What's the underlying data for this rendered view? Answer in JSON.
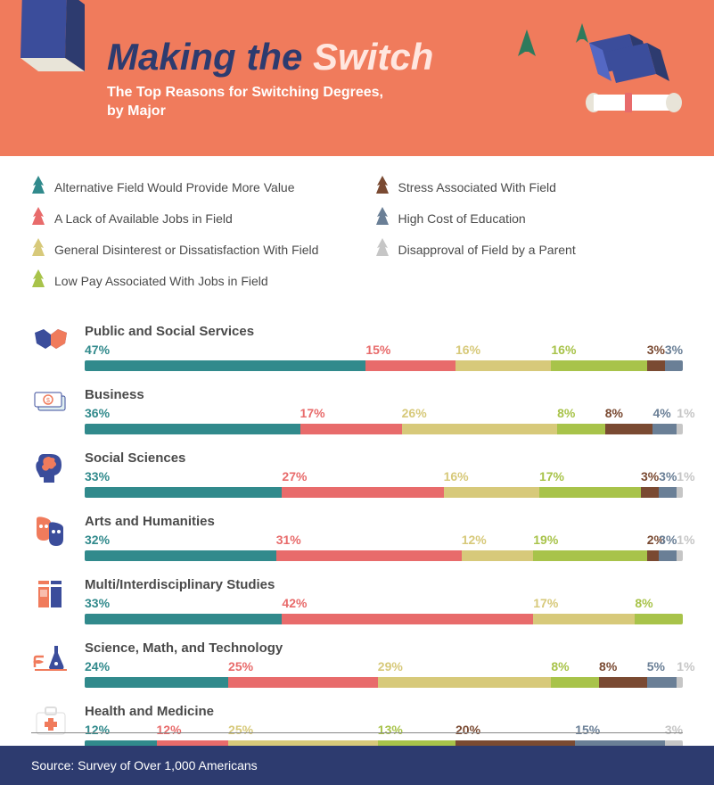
{
  "title_part1": "Making the ",
  "title_part2": "Switch",
  "subtitle": "The Top Reasons for Switching Degrees,\nby Major",
  "colors": {
    "banner": "#f07b5c",
    "nav": "#2d3b6f",
    "teal": "#318a8c",
    "salmon": "#e86b6b",
    "khaki": "#d7c97a",
    "olive": "#a8c34a",
    "brown": "#7a4a32",
    "steel": "#6a7f96",
    "grey": "#c6c6c6"
  },
  "legend": [
    {
      "label": "Alternative Field Would Provide More Value",
      "color": "#318a8c"
    },
    {
      "label": "A Lack of Available Jobs in Field",
      "color": "#e86b6b"
    },
    {
      "label": "General Disinterest or Dissatisfaction With Field",
      "color": "#d7c97a"
    },
    {
      "label": "Low Pay Associated With Jobs in Field",
      "color": "#a8c34a"
    },
    {
      "label": "Stress Associated With Field",
      "color": "#7a4a32"
    },
    {
      "label": "High Cost of Education",
      "color": "#6a7f96"
    },
    {
      "label": "Disapproval of Field by a Parent",
      "color": "#c6c6c6"
    }
  ],
  "majors": [
    {
      "name": "Public and Social Services",
      "icon": "handshake",
      "segments": [
        {
          "value": 47,
          "color": "#318a8c",
          "show": true
        },
        {
          "value": 15,
          "color": "#e86b6b",
          "show": true
        },
        {
          "value": 16,
          "color": "#d7c97a",
          "show": true
        },
        {
          "value": 16,
          "color": "#a8c34a",
          "show": true
        },
        {
          "value": 3,
          "color": "#7a4a32",
          "show": true
        },
        {
          "value": 3,
          "color": "#6a7f96",
          "show": true
        }
      ]
    },
    {
      "name": "Business",
      "icon": "money",
      "segments": [
        {
          "value": 36,
          "color": "#318a8c",
          "show": true
        },
        {
          "value": 17,
          "color": "#e86b6b",
          "show": true
        },
        {
          "value": 26,
          "color": "#d7c97a",
          "show": true
        },
        {
          "value": 8,
          "color": "#a8c34a",
          "show": true
        },
        {
          "value": 8,
          "color": "#7a4a32",
          "show": true
        },
        {
          "value": 4,
          "color": "#6a7f96",
          "show": true
        },
        {
          "value": 1,
          "color": "#c6c6c6",
          "show": true
        }
      ]
    },
    {
      "name": "Social Sciences",
      "icon": "brain",
      "segments": [
        {
          "value": 33,
          "color": "#318a8c",
          "show": true
        },
        {
          "value": 27,
          "color": "#e86b6b",
          "show": true
        },
        {
          "value": 16,
          "color": "#d7c97a",
          "show": true
        },
        {
          "value": 17,
          "color": "#a8c34a",
          "show": true
        },
        {
          "value": 3,
          "color": "#7a4a32",
          "show": true
        },
        {
          "value": 3,
          "color": "#6a7f96",
          "show": true
        },
        {
          "value": 1,
          "color": "#c6c6c6",
          "show": true
        }
      ]
    },
    {
      "name": "Arts and Humanities",
      "icon": "masks",
      "segments": [
        {
          "value": 32,
          "color": "#318a8c",
          "show": true
        },
        {
          "value": 31,
          "color": "#e86b6b",
          "show": true
        },
        {
          "value": 12,
          "color": "#d7c97a",
          "show": true
        },
        {
          "value": 19,
          "color": "#a8c34a",
          "show": true
        },
        {
          "value": 2,
          "color": "#7a4a32",
          "show": true
        },
        {
          "value": 3,
          "color": "#6a7f96",
          "show": true
        },
        {
          "value": 1,
          "color": "#c6c6c6",
          "show": true
        }
      ]
    },
    {
      "name": "Multi/Interdisciplinary Studies",
      "icon": "books",
      "segments": [
        {
          "value": 33,
          "color": "#318a8c",
          "show": true
        },
        {
          "value": 42,
          "color": "#e86b6b",
          "show": true
        },
        {
          "value": 17,
          "color": "#d7c97a",
          "show": true
        },
        {
          "value": 8,
          "color": "#a8c34a",
          "show": true
        }
      ]
    },
    {
      "name": "Science, Math, and Technology",
      "icon": "science",
      "segments": [
        {
          "value": 24,
          "color": "#318a8c",
          "show": true
        },
        {
          "value": 25,
          "color": "#e86b6b",
          "show": true
        },
        {
          "value": 29,
          "color": "#d7c97a",
          "show": true
        },
        {
          "value": 8,
          "color": "#a8c34a",
          "show": true
        },
        {
          "value": 8,
          "color": "#7a4a32",
          "show": true
        },
        {
          "value": 5,
          "color": "#6a7f96",
          "show": true
        },
        {
          "value": 1,
          "color": "#c6c6c6",
          "show": true
        }
      ]
    },
    {
      "name": "Health and Medicine",
      "icon": "medkit",
      "segments": [
        {
          "value": 12,
          "color": "#318a8c",
          "show": true
        },
        {
          "value": 12,
          "color": "#e86b6b",
          "show": true
        },
        {
          "value": 25,
          "color": "#d7c97a",
          "show": true
        },
        {
          "value": 13,
          "color": "#a8c34a",
          "show": true
        },
        {
          "value": 20,
          "color": "#7a4a32",
          "show": true
        },
        {
          "value": 15,
          "color": "#6a7f96",
          "show": true
        },
        {
          "value": 3,
          "color": "#c6c6c6",
          "show": true
        }
      ]
    }
  ],
  "footer": "Source: Survey of Over 1,000 Americans"
}
